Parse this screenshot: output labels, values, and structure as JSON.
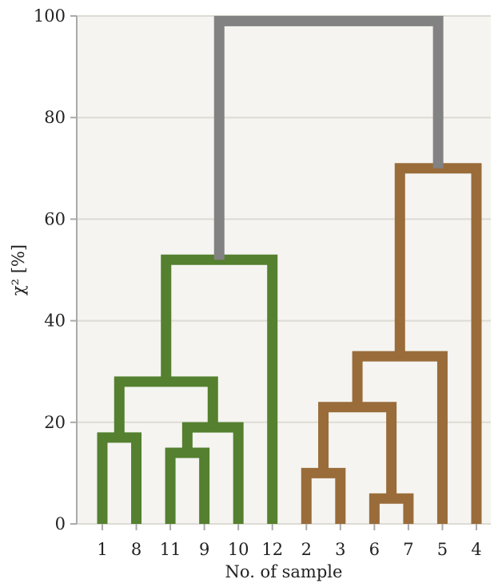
{
  "chart_data": {
    "type": "dendrogram",
    "xlabel": "No. of sample",
    "ylabel": "χ² [%]",
    "ylim": [
      0,
      100
    ],
    "yticks": [
      0,
      20,
      40,
      60,
      80,
      100
    ],
    "grid": true,
    "leaves": [
      "1",
      "8",
      "11",
      "9",
      "10",
      "12",
      "2",
      "3",
      "6",
      "7",
      "5",
      "4"
    ],
    "merges": [
      {
        "id": "m1",
        "left": "1",
        "right": "8",
        "height": 17,
        "cluster": "green"
      },
      {
        "id": "m2",
        "left": "11",
        "right": "9",
        "height": 14,
        "cluster": "green"
      },
      {
        "id": "m3",
        "left": "m2",
        "right": "10",
        "height": 19,
        "cluster": "green"
      },
      {
        "id": "m4",
        "left": "m1",
        "right": "m3",
        "height": 28,
        "cluster": "green"
      },
      {
        "id": "m5",
        "left": "m4",
        "right": "12",
        "height": 52,
        "cluster": "green"
      },
      {
        "id": "m6",
        "left": "2",
        "right": "3",
        "height": 10,
        "cluster": "brown"
      },
      {
        "id": "m7",
        "left": "6",
        "right": "7",
        "height": 5,
        "cluster": "brown"
      },
      {
        "id": "m8",
        "left": "m6",
        "right": "m7",
        "height": 23,
        "cluster": "brown"
      },
      {
        "id": "m9",
        "left": "m8",
        "right": "5",
        "height": 33,
        "cluster": "brown"
      },
      {
        "id": "m10",
        "left": "m9",
        "right": "4",
        "height": 70,
        "cluster": "brown"
      },
      {
        "id": "m11",
        "left": "m5",
        "right": "m10",
        "height": 99,
        "cluster": "root"
      }
    ],
    "colors": {
      "green": "#54802f",
      "brown": "#996c3a",
      "root": "#828282",
      "plot_background": "#f5f4f0",
      "grid": "#dddbd4",
      "axis": "#aaaaaa"
    }
  }
}
